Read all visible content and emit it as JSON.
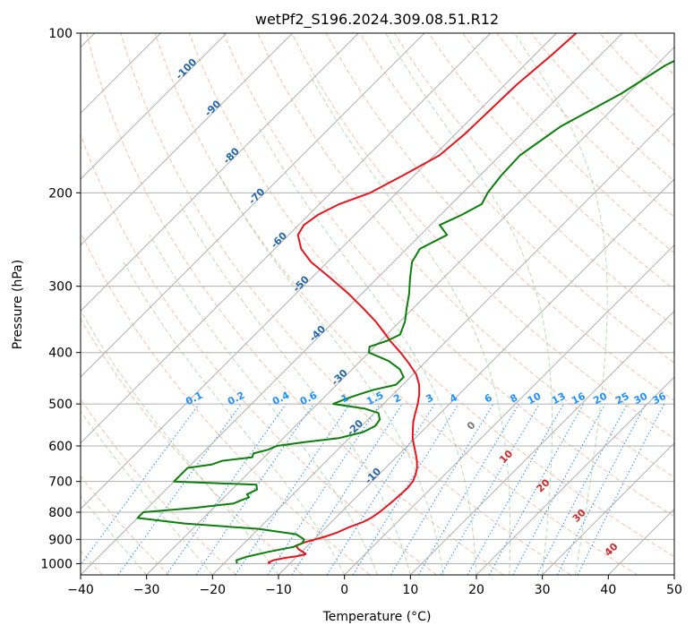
{
  "chart_data": {
    "type": "line",
    "subtype": "skew-t log-p",
    "title": "wetPf2_S196.2024.309.08.51.R12",
    "xlabel": "Temperature (°C)",
    "ylabel": "Pressure (hPa)",
    "xlim": [
      -40,
      50
    ],
    "ylim": [
      1050,
      100
    ],
    "y_scale": "log",
    "grid": true,
    "x_ticks": [
      -40,
      -30,
      -20,
      -10,
      0,
      10,
      20,
      30,
      40,
      50
    ],
    "x_tick_labels": [
      "−40",
      "−30",
      "−20",
      "−10",
      "0",
      "10",
      "20",
      "30",
      "40",
      "50"
    ],
    "y_ticks": [
      100,
      200,
      300,
      400,
      500,
      600,
      700,
      800,
      900,
      1000
    ],
    "y_tick_labels": [
      "100",
      "200",
      "300",
      "400",
      "500",
      "600",
      "700",
      "800",
      "900",
      "1000"
    ],
    "colors": {
      "temperature": "#e8141b",
      "dewpoint": "#0a7f0a",
      "isotherm_labels": "#2166ac",
      "mixing_ratio": "#1e90ff",
      "moist_labels": "#d62728",
      "dry_adiabat": "#f4a582",
      "moist_adiabat": "#74c476",
      "grid": "#b0b0b0"
    },
    "series": [
      {
        "key": "temperature",
        "pressure": [
          1000,
          995,
          985,
          975,
          968,
          960,
          950,
          940,
          925,
          912,
          900,
          890,
          875,
          855,
          835,
          820,
          800,
          780,
          760,
          740,
          720,
          700,
          680,
          660,
          640,
          620,
          600,
          580,
          560,
          540,
          520,
          500,
          480,
          460,
          440,
          420,
          400,
          380,
          370,
          350,
          330,
          310,
          290,
          270,
          255,
          240,
          230,
          220,
          210,
          200,
          185,
          170,
          155,
          140,
          125,
          110,
          100
        ],
        "values": [
          -13.0,
          -13.4,
          -13.0,
          -11.5,
          -10.0,
          -9.0,
          -9.8,
          -10.8,
          -11.8,
          -11.0,
          -9.8,
          -8.8,
          -7.6,
          -6.6,
          -5.2,
          -4.6,
          -4.2,
          -4.0,
          -3.8,
          -3.7,
          -3.6,
          -3.8,
          -4.4,
          -5.2,
          -6.3,
          -7.6,
          -9.0,
          -10.4,
          -11.6,
          -12.8,
          -13.8,
          -14.8,
          -16.0,
          -17.5,
          -19.5,
          -22.2,
          -25.2,
          -28.6,
          -30.2,
          -33.6,
          -37.6,
          -42.0,
          -47.0,
          -52.5,
          -56.0,
          -58.6,
          -59.2,
          -58.6,
          -57.0,
          -54.0,
          -51.6,
          -49.2,
          -48.6,
          -48.4,
          -48.2,
          -47.4,
          -47.0
        ]
      },
      {
        "key": "dewpoint",
        "pressure": [
          1000,
          985,
          970,
          950,
          930,
          915,
          900,
          880,
          860,
          840,
          820,
          800,
          785,
          770,
          760,
          750,
          740,
          725,
          710,
          700,
          690,
          680,
          670,
          660,
          650,
          640,
          630,
          620,
          610,
          600,
          590,
          580,
          565,
          550,
          535,
          520,
          510,
          500,
          490,
          480,
          470,
          460,
          445,
          430,
          415,
          400,
          390,
          380,
          370,
          350,
          330,
          310,
          290,
          270,
          255,
          240,
          230,
          220,
          210,
          200,
          185,
          170,
          150,
          130,
          115,
          100
        ],
        "values": [
          -18.0,
          -18.6,
          -17.5,
          -15.0,
          -12.0,
          -11.2,
          -11.5,
          -13.5,
          -20.0,
          -32.0,
          -40.0,
          -40.0,
          -33.0,
          -27.6,
          -27.0,
          -26.2,
          -27.0,
          -26.2,
          -27.0,
          -40.0,
          -40.0,
          -40.0,
          -40.0,
          -40.0,
          -36.8,
          -35.8,
          -31.8,
          -32.2,
          -30.6,
          -29.8,
          -26.2,
          -21.6,
          -18.8,
          -17.9,
          -18.2,
          -19.4,
          -22.2,
          -27.6,
          -26.6,
          -25.2,
          -23.6,
          -21.0,
          -21.0,
          -22.8,
          -25.7,
          -30.0,
          -30.8,
          -29.0,
          -28.0,
          -29.2,
          -31.0,
          -32.8,
          -35.0,
          -37.2,
          -38.0,
          -36.0,
          -38.6,
          -36.8,
          -35.4,
          -36.2,
          -36.8,
          -37.0,
          -35.2,
          -31.0,
          -28.6,
          -23.8
        ]
      }
    ],
    "isotherm_labels": [
      -100,
      -90,
      -80,
      -70,
      -60,
      -50,
      -40,
      -30,
      -20,
      -10
    ],
    "mixing_ratio_labels": [
      "0.1",
      "0.2",
      "0.4",
      "0.6",
      "1",
      "1.5",
      "2",
      "3",
      "4",
      "6",
      "8",
      "10",
      "13",
      "16",
      "20",
      "25",
      "30",
      "36"
    ],
    "mixing_ratio_values": [
      0.1,
      0.2,
      0.4,
      0.6,
      1,
      1.5,
      2,
      3,
      4,
      6,
      8,
      10,
      13,
      16,
      20,
      25,
      30,
      36
    ],
    "moist_adiabat_labels": [
      0,
      10,
      20,
      30,
      40
    ],
    "dry_adiabat_theta_c": [
      -40,
      -30,
      -20,
      -10,
      0,
      10,
      20,
      30,
      40,
      50,
      60,
      70,
      80,
      90,
      100,
      110,
      120,
      130,
      140,
      150,
      160,
      170,
      180
    ],
    "moist_adiabat_start_c": [
      -30,
      -20,
      -10,
      0,
      5,
      10,
      15,
      20,
      25,
      30,
      35
    ]
  }
}
